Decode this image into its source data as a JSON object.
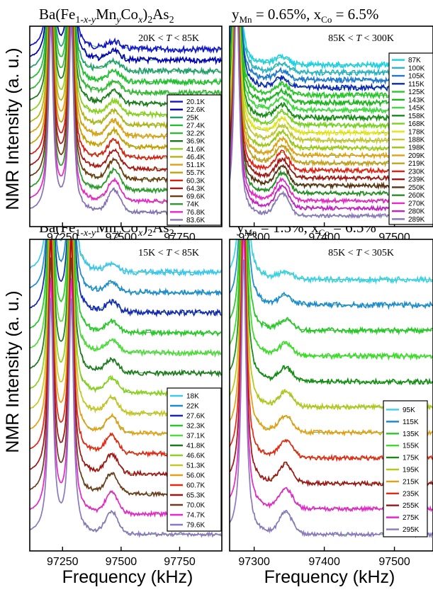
{
  "figure": {
    "ylabel": "NMR Intensity (a. u.)",
    "xlabel": "Frequency (kHz)"
  },
  "chart_data": [
    {
      "id": "A",
      "type": "line",
      "title_formula": {
        "main": "Ba(Fe",
        "sub1": "1-",
        "it1": "x",
        "sub2": "-",
        "it2": "y",
        "main2": "Mn",
        "it3": "y",
        "main3": "Co",
        "it4": "x",
        "main4": ")",
        "sub3": "2",
        "main5": "As",
        "sub4": "2"
      },
      "range_label": {
        "lo": "20K < ",
        "var": "T",
        "hi": " < 85K"
      },
      "xlabel": "",
      "ylabel": "NMR Intensity (a. u.)",
      "x_ticks": [
        97250,
        97500,
        97750
      ],
      "x_tick_labels": [
        "97250",
        "97500",
        "97750"
      ],
      "xlim": [
        97110,
        97930
      ],
      "peaks": [
        97200,
        97287
      ],
      "satellite": 97470,
      "series": [
        {
          "name": "20.1K",
          "color": "#1414cc"
        },
        {
          "name": "22.6K",
          "color": "#0000b4"
        },
        {
          "name": "25K",
          "color": "#22a06e"
        },
        {
          "name": "27.4K",
          "color": "#22c030"
        },
        {
          "name": "32.2K",
          "color": "#36b836"
        },
        {
          "name": "36.9K",
          "color": "#1a7a1a"
        },
        {
          "name": "41.6K",
          "color": "#8cd21e"
        },
        {
          "name": "46.4K",
          "color": "#b4b414"
        },
        {
          "name": "51.1K",
          "color": "#e0a010"
        },
        {
          "name": "55.7K",
          "color": "#c8a000"
        },
        {
          "name": "60.3K",
          "color": "#dc1e10"
        },
        {
          "name": "64.3K",
          "color": "#b01414"
        },
        {
          "name": "69.6K",
          "color": "#6e3a10"
        },
        {
          "name": "74K",
          "color": "#2d9a2d"
        },
        {
          "name": "76.8K",
          "color": "#ee22cc"
        },
        {
          "name": "83.6K",
          "color": "#8a72b8"
        }
      ]
    },
    {
      "id": "B",
      "type": "line",
      "title_formula": {
        "y": "y",
        "ysub": "Mn",
        "rest1": " = 0.65%, x",
        "xsub": "Co",
        "rest2": " = 6.5%"
      },
      "range_label": {
        "lo": "85K < ",
        "var": "T",
        "hi": " < 300K"
      },
      "xlabel": "",
      "ylabel": "",
      "x_ticks": [
        97300,
        97400,
        97500
      ],
      "x_tick_labels": [
        "97300",
        "97400",
        "97500"
      ],
      "xlim": [
        97265,
        97555
      ],
      "peaks": [
        97275
      ],
      "satellite": 97340,
      "series": [
        {
          "name": "87K",
          "color": "#1ed2e6"
        },
        {
          "name": "100K",
          "color": "#2ab4c8"
        },
        {
          "name": "105K",
          "color": "#1e78d2"
        },
        {
          "name": "115K",
          "color": "#0a28b4"
        },
        {
          "name": "125K",
          "color": "#28c828"
        },
        {
          "name": "143K",
          "color": "#1eb41e"
        },
        {
          "name": "145K",
          "color": "#3cdc3c"
        },
        {
          "name": "158K",
          "color": "#148c14"
        },
        {
          "name": "168K",
          "color": "#78d21e"
        },
        {
          "name": "178K",
          "color": "#e6e61e"
        },
        {
          "name": "188K",
          "color": "#c8c832"
        },
        {
          "name": "198K",
          "color": "#a0c814"
        },
        {
          "name": "209K",
          "color": "#e6a014"
        },
        {
          "name": "219K",
          "color": "#c8a01e"
        },
        {
          "name": "230K",
          "color": "#e61e14"
        },
        {
          "name": "239K",
          "color": "#a01414"
        },
        {
          "name": "250K",
          "color": "#5a3214"
        },
        {
          "name": "260K",
          "color": "#288c28"
        },
        {
          "name": "270K",
          "color": "#e628c8"
        },
        {
          "name": "280K",
          "color": "#c81ec8"
        },
        {
          "name": "289K",
          "color": "#8c78be"
        }
      ]
    },
    {
      "id": "C",
      "type": "line",
      "title_formula": {
        "main": "Ba(Fe",
        "sub1": "1-",
        "it1": "x",
        "sub2": "-",
        "it2": "y",
        "main2": "Mn",
        "it3": "y",
        "main3": "Co",
        "it4": "x",
        "main4": ")",
        "sub3": "2",
        "main5": "As",
        "sub4": "2"
      },
      "range_label": {
        "lo": "15K < ",
        "var": "T",
        "hi": " < 85K"
      },
      "xlabel": "Frequency (kHz)",
      "ylabel": "NMR Intensity (a. u.)",
      "x_ticks": [
        97250,
        97500,
        97750
      ],
      "x_tick_labels": [
        "97250",
        "97500",
        "97750"
      ],
      "xlim": [
        97110,
        97930
      ],
      "peaks": [
        97200,
        97287
      ],
      "satellite": 97460,
      "series": [
        {
          "name": "18K",
          "color": "#3cc8f0"
        },
        {
          "name": "22K",
          "color": "#1e8cd2"
        },
        {
          "name": "27.6K",
          "color": "#1428b4"
        },
        {
          "name": "32.3K",
          "color": "#28c828"
        },
        {
          "name": "37.1K",
          "color": "#50dc3c"
        },
        {
          "name": "41.8K",
          "color": "#1e7a1e"
        },
        {
          "name": "46.6K",
          "color": "#8cd21e"
        },
        {
          "name": "51.3K",
          "color": "#c8c828"
        },
        {
          "name": "56.0K",
          "color": "#e6a014"
        },
        {
          "name": "60.7K",
          "color": "#e62814"
        },
        {
          "name": "65.3K",
          "color": "#a01414"
        },
        {
          "name": "70.0K",
          "color": "#6e3c1e"
        },
        {
          "name": "74.7K",
          "color": "#e628c8"
        },
        {
          "name": "79.6K",
          "color": "#8c78be"
        }
      ]
    },
    {
      "id": "D",
      "type": "line",
      "title_formula": {
        "y": "y",
        "ysub": "Mn",
        "rest1": " = 1.5%, x",
        "xsub": "Co",
        "rest2": " = 6.5%"
      },
      "range_label": {
        "lo": "85K < ",
        "var": "T",
        "hi": " < 305K"
      },
      "xlabel": "Frequency (kHz)",
      "ylabel": "",
      "x_ticks": [
        97300,
        97400,
        97500
      ],
      "x_tick_labels": [
        "97300",
        "97400",
        "97500"
      ],
      "xlim": [
        97265,
        97555
      ],
      "peaks": [
        97285
      ],
      "satellite": 97345,
      "series": [
        {
          "name": "95K",
          "color": "#3cd2e6"
        },
        {
          "name": "115K",
          "color": "#1e8cd2"
        },
        {
          "name": "135K",
          "color": "#28c828"
        },
        {
          "name": "155K",
          "color": "#3cdc28"
        },
        {
          "name": "175K",
          "color": "#148c14"
        },
        {
          "name": "195K",
          "color": "#b4c81e"
        },
        {
          "name": "215K",
          "color": "#e6a014"
        },
        {
          "name": "235K",
          "color": "#e62814"
        },
        {
          "name": "255K",
          "color": "#a01414"
        },
        {
          "name": "275K",
          "color": "#e628c8"
        },
        {
          "name": "295K",
          "color": "#8c78be"
        }
      ]
    }
  ]
}
